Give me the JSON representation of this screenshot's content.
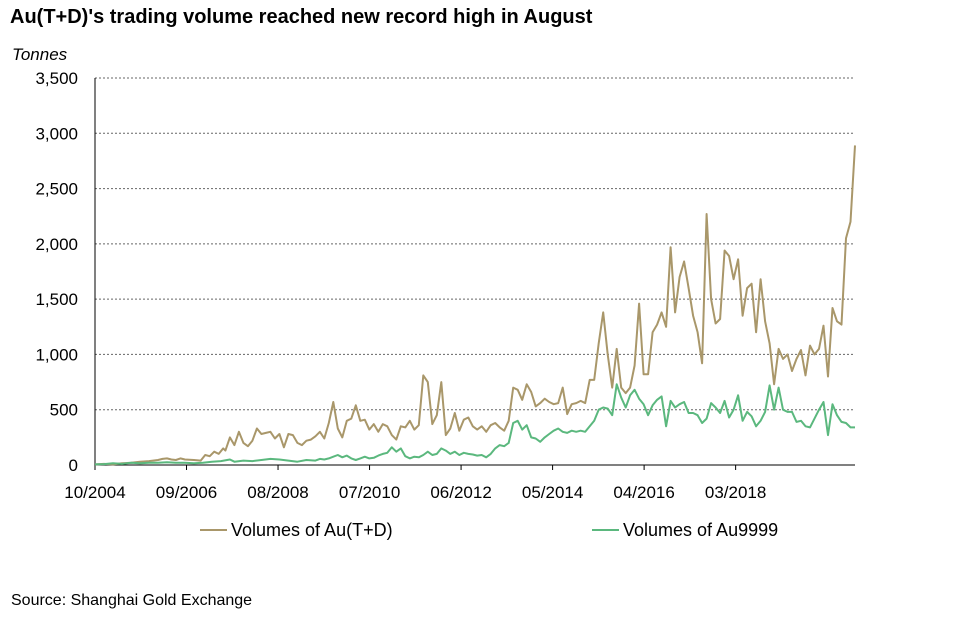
{
  "chart_data": {
    "type": "line",
    "title": "Au(T+D)'s trading volume reached new record high in August",
    "ylabel": "Tonnes",
    "xlabel": "",
    "ylim": [
      0,
      3500
    ],
    "yticks": [
      0,
      500,
      1000,
      1500,
      2000,
      2500,
      3000,
      3500
    ],
    "ytick_labels": [
      "0",
      "500",
      "1,000",
      "1,500",
      "2,000",
      "2,500",
      "3,000",
      "3,500"
    ],
    "xtick_labels": [
      "10/2004",
      "09/2006",
      "08/2008",
      "07/2010",
      "06/2012",
      "05/2014",
      "04/2016",
      "03/2018"
    ],
    "x_period_start": "10/2004",
    "x_tick_interval_months": 23,
    "total_months": 191,
    "grid": true,
    "legend_position": "bottom",
    "series": [
      {
        "name": "Volumes of Au(T+D)",
        "color": "#A9976A",
        "points": [
          [
            0,
            5
          ],
          [
            4,
            10
          ],
          [
            8,
            5
          ],
          [
            12,
            15
          ],
          [
            16,
            20
          ],
          [
            20,
            30
          ],
          [
            24,
            35
          ],
          [
            28,
            45
          ],
          [
            30,
            55
          ],
          [
            32,
            60
          ],
          [
            34,
            50
          ],
          [
            36,
            45
          ],
          [
            38,
            60
          ],
          [
            40,
            50
          ],
          [
            44,
            45
          ],
          [
            47,
            40
          ],
          [
            49,
            90
          ],
          [
            51,
            80
          ],
          [
            53,
            120
          ],
          [
            55,
            100
          ],
          [
            57,
            150
          ],
          [
            58,
            130
          ],
          [
            60,
            250
          ],
          [
            62,
            180
          ],
          [
            64,
            300
          ],
          [
            66,
            200
          ],
          [
            68,
            170
          ],
          [
            70,
            220
          ],
          [
            72,
            330
          ],
          [
            74,
            280
          ],
          [
            76,
            290
          ],
          [
            78,
            300
          ],
          [
            80,
            240
          ],
          [
            82,
            280
          ],
          [
            84,
            160
          ],
          [
            86,
            280
          ],
          [
            88,
            270
          ],
          [
            90,
            200
          ],
          [
            92,
            180
          ],
          [
            94,
            220
          ],
          [
            96,
            230
          ],
          [
            98,
            260
          ],
          [
            100,
            300
          ],
          [
            102,
            240
          ],
          [
            104,
            380
          ],
          [
            106,
            570
          ],
          [
            108,
            330
          ],
          [
            110,
            250
          ],
          [
            112,
            400
          ],
          [
            114,
            420
          ],
          [
            116,
            540
          ],
          [
            118,
            400
          ],
          [
            120,
            410
          ],
          [
            122,
            320
          ],
          [
            124,
            370
          ],
          [
            126,
            300
          ],
          [
            128,
            370
          ],
          [
            130,
            350
          ],
          [
            132,
            270
          ],
          [
            134,
            230
          ],
          [
            136,
            350
          ],
          [
            138,
            340
          ],
          [
            140,
            400
          ],
          [
            142,
            320
          ],
          [
            144,
            360
          ],
          [
            146,
            810
          ],
          [
            148,
            750
          ],
          [
            150,
            370
          ],
          [
            152,
            450
          ],
          [
            154,
            750
          ],
          [
            156,
            270
          ],
          [
            158,
            330
          ],
          [
            160,
            470
          ],
          [
            162,
            310
          ],
          [
            164,
            410
          ],
          [
            166,
            430
          ],
          [
            168,
            350
          ],
          [
            170,
            320
          ],
          [
            172,
            350
          ],
          [
            174,
            300
          ],
          [
            176,
            360
          ],
          [
            178,
            380
          ],
          [
            180,
            340
          ],
          [
            182,
            310
          ],
          [
            184,
            400
          ],
          [
            186,
            700
          ],
          [
            188,
            680
          ],
          [
            190,
            590
          ],
          [
            192,
            730
          ],
          [
            194,
            660
          ],
          [
            196,
            530
          ],
          [
            198,
            560
          ],
          [
            200,
            600
          ],
          [
            202,
            570
          ],
          [
            204,
            550
          ],
          [
            206,
            560
          ],
          [
            208,
            700
          ],
          [
            210,
            460
          ],
          [
            212,
            550
          ],
          [
            214,
            560
          ],
          [
            216,
            580
          ],
          [
            218,
            560
          ],
          [
            220,
            770
          ],
          [
            222,
            770
          ],
          [
            224,
            1100
          ],
          [
            226,
            1380
          ],
          [
            228,
            1000
          ],
          [
            230,
            700
          ],
          [
            232,
            1050
          ],
          [
            234,
            700
          ],
          [
            236,
            650
          ],
          [
            238,
            700
          ],
          [
            240,
            900
          ],
          [
            242,
            1460
          ],
          [
            244,
            820
          ],
          [
            246,
            820
          ],
          [
            248,
            1200
          ],
          [
            250,
            1270
          ],
          [
            252,
            1380
          ],
          [
            254,
            1250
          ],
          [
            256,
            1970
          ],
          [
            258,
            1380
          ],
          [
            260,
            1700
          ],
          [
            262,
            1840
          ],
          [
            264,
            1600
          ],
          [
            266,
            1350
          ],
          [
            268,
            1200
          ],
          [
            270,
            920
          ],
          [
            272,
            2270
          ],
          [
            274,
            1500
          ],
          [
            276,
            1280
          ],
          [
            278,
            1320
          ],
          [
            280,
            1940
          ],
          [
            282,
            1890
          ],
          [
            284,
            1680
          ],
          [
            286,
            1860
          ],
          [
            288,
            1350
          ],
          [
            290,
            1600
          ],
          [
            292,
            1640
          ],
          [
            294,
            1200
          ],
          [
            296,
            1680
          ],
          [
            298,
            1300
          ],
          [
            300,
            1100
          ],
          [
            302,
            730
          ],
          [
            304,
            1050
          ],
          [
            306,
            960
          ],
          [
            308,
            1000
          ],
          [
            310,
            850
          ],
          [
            312,
            960
          ],
          [
            314,
            1040
          ],
          [
            316,
            810
          ],
          [
            318,
            1080
          ],
          [
            320,
            1000
          ],
          [
            322,
            1050
          ],
          [
            324,
            1260
          ],
          [
            326,
            800
          ],
          [
            328,
            1420
          ],
          [
            330,
            1300
          ],
          [
            332,
            1270
          ],
          [
            334,
            2050
          ],
          [
            336,
            2200
          ],
          [
            338,
            2890
          ]
        ]
      },
      {
        "name": "Volumes of Au9999",
        "color": "#5BB87E",
        "points": [
          [
            0,
            5
          ],
          [
            4,
            8
          ],
          [
            8,
            15
          ],
          [
            12,
            10
          ],
          [
            16,
            20
          ],
          [
            20,
            15
          ],
          [
            24,
            20
          ],
          [
            28,
            20
          ],
          [
            32,
            25
          ],
          [
            36,
            20
          ],
          [
            40,
            20
          ],
          [
            44,
            15
          ],
          [
            48,
            20
          ],
          [
            52,
            30
          ],
          [
            56,
            35
          ],
          [
            60,
            50
          ],
          [
            62,
            30
          ],
          [
            66,
            40
          ],
          [
            70,
            35
          ],
          [
            74,
            45
          ],
          [
            78,
            55
          ],
          [
            82,
            50
          ],
          [
            86,
            40
          ],
          [
            90,
            30
          ],
          [
            94,
            45
          ],
          [
            98,
            40
          ],
          [
            100,
            55
          ],
          [
            102,
            50
          ],
          [
            104,
            60
          ],
          [
            106,
            75
          ],
          [
            108,
            90
          ],
          [
            110,
            70
          ],
          [
            112,
            85
          ],
          [
            114,
            60
          ],
          [
            116,
            45
          ],
          [
            118,
            60
          ],
          [
            120,
            75
          ],
          [
            122,
            60
          ],
          [
            124,
            65
          ],
          [
            126,
            85
          ],
          [
            128,
            100
          ],
          [
            130,
            110
          ],
          [
            132,
            160
          ],
          [
            134,
            120
          ],
          [
            136,
            150
          ],
          [
            138,
            80
          ],
          [
            140,
            60
          ],
          [
            142,
            75
          ],
          [
            144,
            70
          ],
          [
            146,
            90
          ],
          [
            148,
            120
          ],
          [
            150,
            90
          ],
          [
            152,
            100
          ],
          [
            154,
            150
          ],
          [
            156,
            130
          ],
          [
            158,
            100
          ],
          [
            160,
            120
          ],
          [
            162,
            90
          ],
          [
            164,
            110
          ],
          [
            166,
            100
          ],
          [
            168,
            95
          ],
          [
            170,
            85
          ],
          [
            172,
            90
          ],
          [
            174,
            70
          ],
          [
            176,
            100
          ],
          [
            178,
            150
          ],
          [
            180,
            180
          ],
          [
            182,
            170
          ],
          [
            184,
            200
          ],
          [
            186,
            380
          ],
          [
            188,
            400
          ],
          [
            190,
            320
          ],
          [
            192,
            360
          ],
          [
            194,
            250
          ],
          [
            196,
            240
          ],
          [
            198,
            210
          ],
          [
            200,
            250
          ],
          [
            202,
            280
          ],
          [
            204,
            310
          ],
          [
            206,
            330
          ],
          [
            208,
            300
          ],
          [
            210,
            290
          ],
          [
            212,
            310
          ],
          [
            214,
            300
          ],
          [
            216,
            310
          ],
          [
            218,
            300
          ],
          [
            220,
            350
          ],
          [
            222,
            400
          ],
          [
            224,
            500
          ],
          [
            226,
            520
          ],
          [
            228,
            510
          ],
          [
            230,
            450
          ],
          [
            232,
            730
          ],
          [
            234,
            610
          ],
          [
            236,
            520
          ],
          [
            238,
            630
          ],
          [
            240,
            680
          ],
          [
            242,
            600
          ],
          [
            244,
            550
          ],
          [
            246,
            450
          ],
          [
            248,
            540
          ],
          [
            250,
            590
          ],
          [
            252,
            620
          ],
          [
            254,
            350
          ],
          [
            256,
            580
          ],
          [
            258,
            520
          ],
          [
            260,
            550
          ],
          [
            262,
            570
          ],
          [
            264,
            470
          ],
          [
            266,
            470
          ],
          [
            268,
            450
          ],
          [
            270,
            380
          ],
          [
            272,
            420
          ],
          [
            274,
            560
          ],
          [
            276,
            520
          ],
          [
            278,
            470
          ],
          [
            280,
            580
          ],
          [
            282,
            430
          ],
          [
            284,
            500
          ],
          [
            286,
            630
          ],
          [
            288,
            400
          ],
          [
            290,
            480
          ],
          [
            292,
            440
          ],
          [
            294,
            350
          ],
          [
            296,
            400
          ],
          [
            298,
            480
          ],
          [
            300,
            720
          ],
          [
            302,
            500
          ],
          [
            304,
            700
          ],
          [
            306,
            500
          ],
          [
            308,
            480
          ],
          [
            310,
            480
          ],
          [
            312,
            390
          ],
          [
            314,
            400
          ],
          [
            316,
            350
          ],
          [
            318,
            340
          ],
          [
            320,
            420
          ],
          [
            322,
            500
          ],
          [
            324,
            570
          ],
          [
            326,
            270
          ],
          [
            328,
            550
          ],
          [
            330,
            450
          ],
          [
            332,
            390
          ],
          [
            334,
            380
          ],
          [
            336,
            340
          ],
          [
            338,
            340
          ]
        ]
      }
    ],
    "source": "Source: Shanghai Gold Exchange"
  }
}
